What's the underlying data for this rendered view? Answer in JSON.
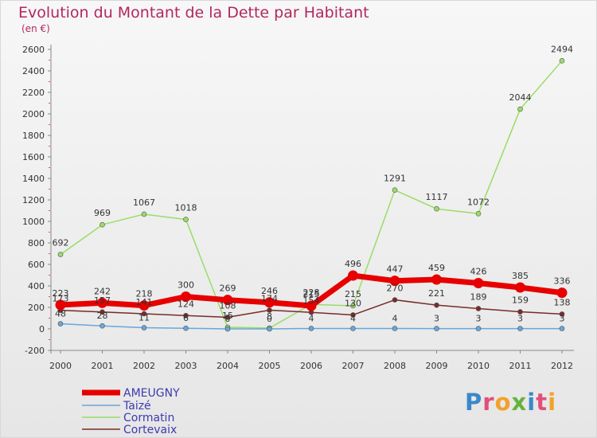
{
  "header": {
    "title": "Evolution du Montant de la Dette par Habitant",
    "subtitle": "(en €)"
  },
  "logo": {
    "text": "Proxiti",
    "colors": [
      "#3a88c9",
      "#e0507a",
      "#f2a12a",
      "#64b33c",
      "#3a88c9",
      "#e0507a",
      "#f2a12a"
    ]
  },
  "chart_data": {
    "type": "line",
    "x": [
      2000,
      2001,
      2002,
      2003,
      2004,
      2005,
      2006,
      2007,
      2008,
      2009,
      2010,
      2011,
      2012
    ],
    "ylim": [
      -200,
      2600
    ],
    "yticks": [
      -200,
      0,
      200,
      400,
      600,
      800,
      1000,
      1200,
      1400,
      1600,
      1800,
      2000,
      2200,
      2400,
      2600
    ],
    "grid": false,
    "legend_position": "bottom-left",
    "series": [
      {
        "name": "AMEUGNY",
        "color": "#e60000",
        "values": [
          223,
          242,
          218,
          300,
          269,
          246,
          215,
          496,
          447,
          459,
          426,
          385,
          336
        ],
        "labels": [
          "223",
          "242",
          "218",
          "300",
          "269",
          "246",
          "215",
          "496",
          "447",
          "459",
          "426",
          "385",
          "336"
        ]
      },
      {
        "name": "Taizé",
        "color": "#6aa6d8",
        "values": [
          48,
          28,
          11,
          6,
          0,
          0,
          4,
          4,
          4,
          3,
          3,
          3,
          3
        ],
        "labels": [
          "48",
          "28",
          "11",
          "6",
          "0",
          "0",
          "4",
          "4",
          "4",
          "3",
          "3",
          "3",
          "3"
        ]
      },
      {
        "name": "Cormatin",
        "color": "#99dd66",
        "values": [
          692,
          969,
          1067,
          1018,
          15,
          8,
          228,
          215,
          1291,
          1117,
          1072,
          2044,
          2494
        ],
        "labels": [
          "692",
          "969",
          "1067",
          "1018",
          "15",
          "8",
          "228",
          "215",
          "1291",
          "1117",
          "1072",
          "2044",
          "2494"
        ]
      },
      {
        "name": "Cortevaix",
        "color": "#7a2a2a",
        "values": [
          173,
          157,
          141,
          124,
          108,
          174,
          154,
          130,
          270,
          221,
          189,
          159,
          138
        ],
        "labels": [
          "173",
          "157",
          "141",
          "124",
          "108",
          "174",
          "154",
          "130",
          "270",
          "221",
          "189",
          "159",
          "138"
        ]
      }
    ]
  }
}
